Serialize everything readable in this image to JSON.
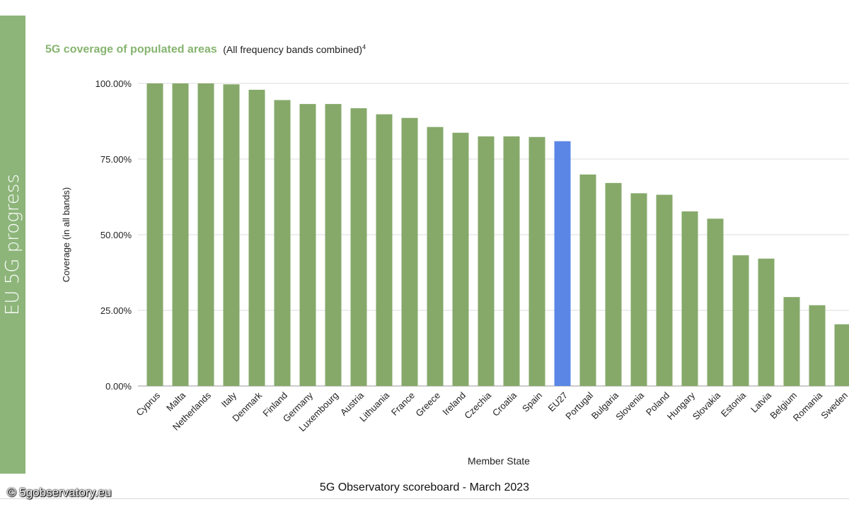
{
  "side_label": "EU 5G progress",
  "title": {
    "main": "5G coverage of populated areas",
    "sub": "(All frequency bands combined)",
    "footnote": "4"
  },
  "footer": "5G Observatory scoreboard - March 2023",
  "watermark": "© 5gobservatory.eu",
  "colors": {
    "bar": "#86a96a",
    "highlight": "#5b86e5",
    "side_band": "#8db57a",
    "title": "#86b46f"
  },
  "chart_data": {
    "type": "bar",
    "title": "5G coverage of populated areas (All frequency bands combined)",
    "xlabel": "Member State",
    "ylabel": "Coverage (in all bands)",
    "ylim": [
      0,
      100
    ],
    "yticks": [
      "0.00%",
      "25.00%",
      "50.00%",
      "75.00%",
      "100.00%"
    ],
    "grid": true,
    "highlight": "EU27",
    "categories": [
      "Cyprus",
      "Malta",
      "Netherlands",
      "Italy",
      "Denmark",
      "Finland",
      "Germany",
      "Luxembourg",
      "Austria",
      "Lithuania",
      "France",
      "Greece",
      "Ireland",
      "Czechia",
      "Croatia",
      "Spain",
      "EU27",
      "Portugal",
      "Bulgaria",
      "Slovenia",
      "Poland",
      "Hungary",
      "Slovakia",
      "Estonia",
      "Latvia",
      "Belgium",
      "Romania",
      "Sweden"
    ],
    "values": [
      100,
      100,
      100,
      99.7,
      97.9,
      94.5,
      93.2,
      93.2,
      91.8,
      89.8,
      88.6,
      85.6,
      83.7,
      82.5,
      82.5,
      82.3,
      80.9,
      69.9,
      67.1,
      63.7,
      63.2,
      57.7,
      55.3,
      43.2,
      42.1,
      29.4,
      26.7,
      20.4
    ]
  }
}
